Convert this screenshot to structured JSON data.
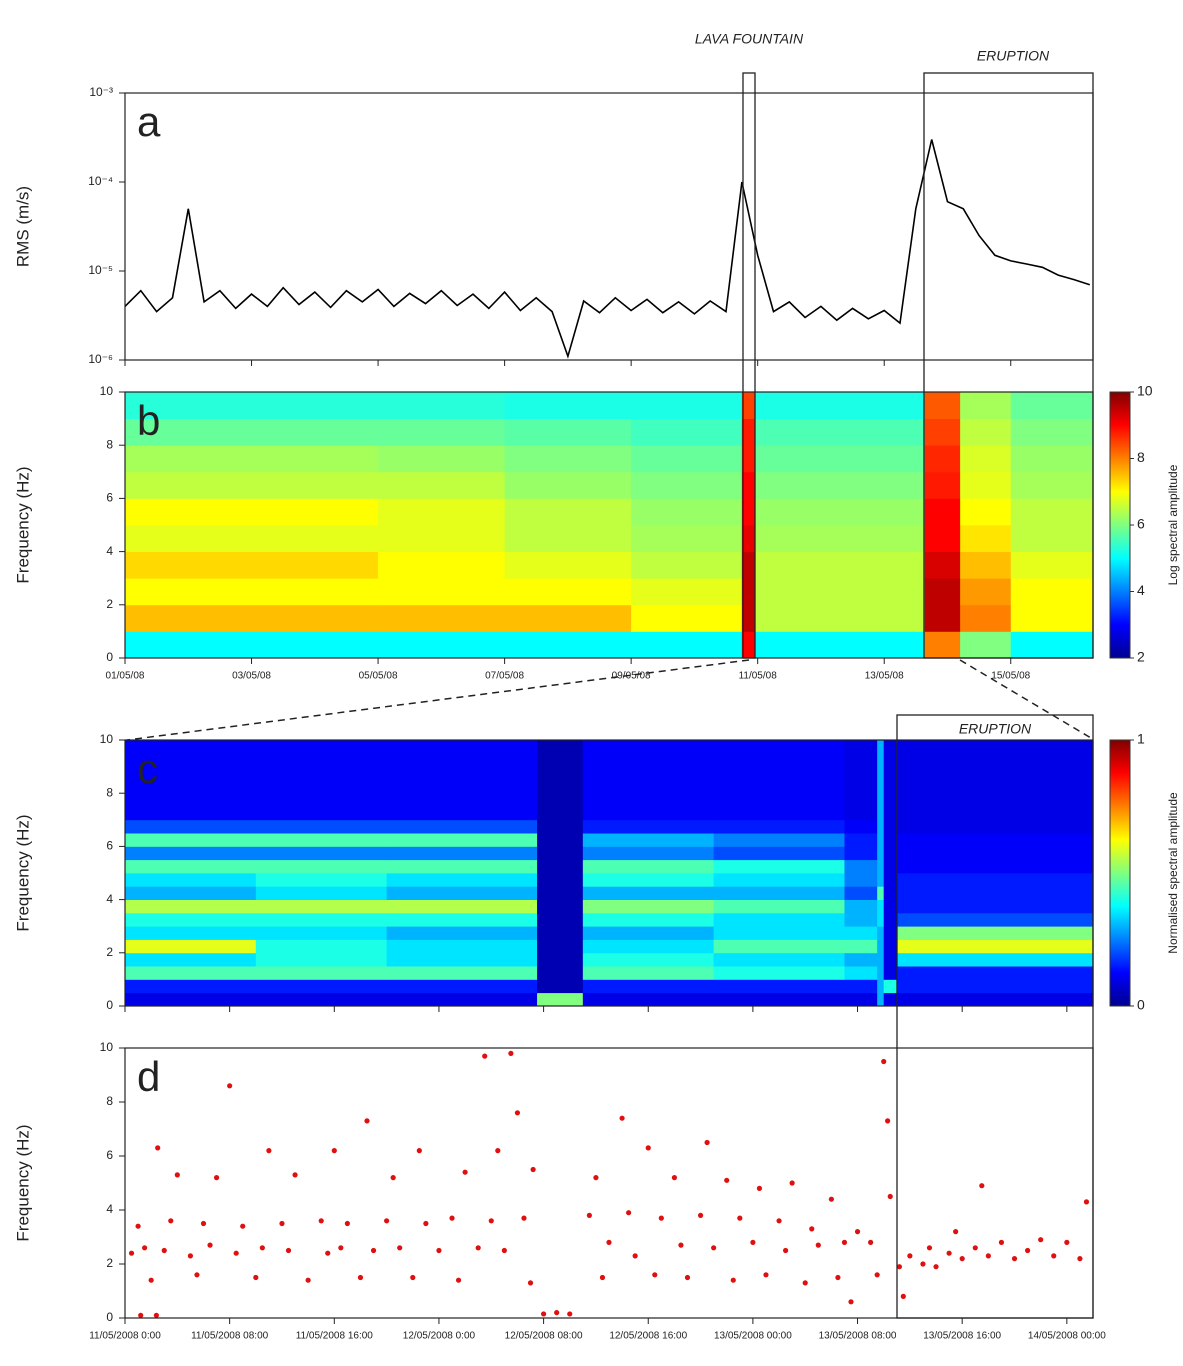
{
  "chart_data": [
    {
      "type": "line",
      "panel": "a",
      "ylabel": "RMS (m/s)",
      "log_y": true,
      "color": "#000000",
      "annotations": [
        "LAVA FOUNTAIN",
        "ERUPTION"
      ],
      "xlim": [
        1,
        16.3
      ],
      "ylim": [
        1e-06,
        0.001
      ],
      "yticks": [
        {
          "value": 1e-06,
          "label": "10⁻⁶"
        },
        {
          "value": 1e-05,
          "label": "10⁻⁵"
        },
        {
          "value": 0.0001,
          "label": "10⁻⁴"
        },
        {
          "value": 0.001,
          "label": "10⁻³"
        }
      ],
      "x": [
        1,
        1.25,
        1.5,
        1.75,
        2,
        2.25,
        2.5,
        2.75,
        3,
        3.25,
        3.5,
        3.75,
        4,
        4.25,
        4.5,
        4.75,
        5,
        5.25,
        5.5,
        5.75,
        6,
        6.25,
        6.5,
        6.75,
        7,
        7.25,
        7.5,
        7.75,
        8,
        8.25,
        8.5,
        8.75,
        9,
        9.25,
        9.5,
        9.75,
        10,
        10.25,
        10.5,
        10.75,
        11,
        11.25,
        11.5,
        11.75,
        12,
        12.25,
        12.5,
        12.75,
        13,
        13.25,
        13.5,
        13.75,
        14,
        14.25,
        14.5,
        14.75,
        15,
        15.25,
        15.5,
        15.75,
        16,
        16.25
      ],
      "values": [
        4e-06,
        6e-06,
        3.5e-06,
        5e-06,
        5e-05,
        4.5e-06,
        6e-06,
        3.8e-06,
        5.5e-06,
        4e-06,
        6.5e-06,
        4.2e-06,
        5.8e-06,
        3.9e-06,
        6e-06,
        4.5e-06,
        6.2e-06,
        4e-06,
        5.6e-06,
        4.3e-06,
        6e-06,
        4.1e-06,
        5.5e-06,
        3.8e-06,
        5.8e-06,
        3.6e-06,
        5e-06,
        3.5e-06,
        1.1e-06,
        4.6e-06,
        3.4e-06,
        5e-06,
        3.6e-06,
        4.8e-06,
        3.4e-06,
        4.5e-06,
        3.3e-06,
        4.6e-06,
        3.5e-06,
        0.0001,
        1.5e-05,
        3.5e-06,
        4.5e-06,
        3e-06,
        4e-06,
        2.8e-06,
        3.8e-06,
        2.9e-06,
        3.6e-06,
        2.6e-06,
        5e-05,
        0.0003,
        6e-05,
        5e-05,
        2.5e-05,
        1.5e-05,
        1.3e-05,
        1.2e-05,
        1.1e-05,
        9e-06,
        8e-06,
        7e-06
      ]
    },
    {
      "type": "heatmap",
      "panel": "b",
      "ylabel": "Frequency (Hz)",
      "colormap": "jet",
      "colorbar": {
        "label": "Log spectral amplitude",
        "lim": [
          2,
          10
        ],
        "ticks": [
          2,
          4,
          6,
          8,
          10
        ]
      },
      "xlim": [
        1,
        16.3
      ],
      "ylim": [
        0,
        10
      ],
      "yticks": [
        0,
        2,
        4,
        6,
        8,
        10
      ],
      "xticks": [
        {
          "value": 1,
          "label": "01/05/08"
        },
        {
          "value": 3,
          "label": "03/05/08"
        },
        {
          "value": 5,
          "label": "05/05/08"
        },
        {
          "value": 7,
          "label": "07/05/08"
        },
        {
          "value": 9,
          "label": "09/05/08"
        },
        {
          "value": 11,
          "label": "11/05/08"
        },
        {
          "value": 13,
          "label": "13/05/08"
        },
        {
          "value": 15,
          "label": "15/05/08"
        }
      ],
      "xbins": [
        1,
        3,
        5,
        7,
        9,
        10.75,
        10.95,
        13.64,
        14.2,
        15,
        16.3
      ],
      "ybins": [
        0,
        1,
        2,
        3,
        4,
        5,
        6,
        7,
        8,
        9,
        10
      ],
      "z": [
        [
          5,
          5,
          5,
          5,
          5,
          9,
          5,
          8,
          6,
          5
        ],
        [
          7.5,
          7.5,
          7.5,
          7.5,
          7,
          9.5,
          6.5,
          9.5,
          8,
          7
        ],
        [
          7,
          7,
          7,
          7,
          6.8,
          9.5,
          6.5,
          9.5,
          7.8,
          7
        ],
        [
          7.3,
          7.3,
          7,
          6.8,
          6.5,
          9.5,
          6.5,
          9.3,
          7.5,
          6.8
        ],
        [
          6.8,
          6.8,
          6.8,
          6.5,
          6.3,
          9.2,
          6.3,
          9,
          7.2,
          6.5
        ],
        [
          7,
          7,
          6.8,
          6.5,
          6.2,
          9,
          6.2,
          9,
          7,
          6.5
        ],
        [
          6.5,
          6.5,
          6.5,
          6.2,
          6,
          9,
          6,
          8.8,
          6.8,
          6.3
        ],
        [
          6.3,
          6.3,
          6.2,
          6,
          5.8,
          8.8,
          5.8,
          8.7,
          6.7,
          6.2
        ],
        [
          5.8,
          5.8,
          5.8,
          5.7,
          5.5,
          8.8,
          5.6,
          8.5,
          6.5,
          6
        ],
        [
          5.3,
          5.3,
          5.3,
          5.2,
          5.2,
          8.5,
          5.2,
          8.3,
          6.3,
          5.8
        ]
      ]
    },
    {
      "type": "heatmap",
      "panel": "c",
      "ylabel": "Frequency (Hz)",
      "colormap": "jet",
      "annotations": [
        "ERUPTION"
      ],
      "colorbar": {
        "label": "Normalised spectral amplitude",
        "lim": [
          0,
          1
        ],
        "ticks": [
          0,
          1
        ]
      },
      "xlim": [
        0,
        74
      ],
      "ylim": [
        0,
        10
      ],
      "yticks": [
        0,
        2,
        4,
        6,
        8,
        10
      ],
      "xbins": [
        0,
        10,
        20,
        31.5,
        35,
        45,
        55,
        57.5,
        58,
        59,
        74
      ],
      "ybins": [
        0,
        0.5,
        1,
        1.5,
        2,
        2.5,
        3,
        3.5,
        4,
        4.5,
        5,
        5.5,
        6,
        6.5,
        7,
        7.5,
        8,
        8.5,
        9,
        9.5,
        10
      ],
      "z": [
        [
          0.1,
          0.1,
          0.1,
          0.5,
          0.1,
          0.1,
          0.1,
          0.3,
          0.1,
          0.1
        ],
        [
          0.15,
          0.15,
          0.15,
          0.05,
          0.15,
          0.15,
          0.15,
          0.3,
          0.4,
          0.15
        ],
        [
          0.45,
          0.45,
          0.45,
          0.05,
          0.45,
          0.4,
          0.35,
          0.3,
          0.1,
          0.15
        ],
        [
          0.35,
          0.4,
          0.35,
          0.05,
          0.4,
          0.35,
          0.3,
          0.3,
          0.1,
          0.35
        ],
        [
          0.6,
          0.4,
          0.35,
          0.05,
          0.35,
          0.45,
          0.45,
          0.3,
          0.1,
          0.6
        ],
        [
          0.35,
          0.35,
          0.3,
          0.05,
          0.3,
          0.35,
          0.35,
          0.3,
          0.1,
          0.5
        ],
        [
          0.4,
          0.4,
          0.4,
          0.05,
          0.4,
          0.35,
          0.3,
          0.35,
          0.1,
          0.2
        ],
        [
          0.55,
          0.55,
          0.55,
          0.05,
          0.5,
          0.45,
          0.3,
          0.35,
          0.1,
          0.15
        ],
        [
          0.3,
          0.35,
          0.3,
          0.05,
          0.3,
          0.3,
          0.2,
          0.45,
          0.1,
          0.15
        ],
        [
          0.35,
          0.4,
          0.35,
          0.05,
          0.4,
          0.35,
          0.25,
          0.3,
          0.1,
          0.15
        ],
        [
          0.45,
          0.45,
          0.45,
          0.05,
          0.45,
          0.4,
          0.25,
          0.3,
          0.1,
          0.12
        ],
        [
          0.25,
          0.25,
          0.25,
          0.05,
          0.25,
          0.2,
          0.15,
          0.3,
          0.1,
          0.12
        ],
        [
          0.45,
          0.45,
          0.45,
          0.05,
          0.3,
          0.25,
          0.15,
          0.3,
          0.1,
          0.12
        ],
        [
          0.2,
          0.2,
          0.2,
          0.05,
          0.15,
          0.15,
          0.12,
          0.3,
          0.1,
          0.1
        ],
        [
          0.12,
          0.12,
          0.12,
          0.05,
          0.12,
          0.12,
          0.1,
          0.3,
          0.1,
          0.1
        ],
        [
          0.12,
          0.12,
          0.12,
          0.05,
          0.12,
          0.12,
          0.1,
          0.3,
          0.1,
          0.1
        ],
        [
          0.12,
          0.12,
          0.12,
          0.05,
          0.12,
          0.12,
          0.1,
          0.3,
          0.1,
          0.1
        ],
        [
          0.12,
          0.12,
          0.12,
          0.05,
          0.12,
          0.12,
          0.1,
          0.3,
          0.1,
          0.1
        ],
        [
          0.12,
          0.12,
          0.12,
          0.05,
          0.12,
          0.12,
          0.1,
          0.3,
          0.1,
          0.1
        ],
        [
          0.12,
          0.12,
          0.12,
          0.05,
          0.12,
          0.12,
          0.1,
          0.3,
          0.1,
          0.1
        ]
      ]
    },
    {
      "type": "scatter",
      "panel": "d",
      "ylabel": "Frequency (Hz)",
      "color": "#e01010",
      "xlim": [
        0,
        74
      ],
      "ylim": [
        0,
        10
      ],
      "yticks": [
        0,
        2,
        4,
        6,
        8,
        10
      ],
      "xticks": [
        {
          "value": 0,
          "label": "11/05/2008 0:00"
        },
        {
          "value": 8,
          "label": "11/05/2008 08:00"
        },
        {
          "value": 16,
          "label": "11/05/2008 16:00"
        },
        {
          "value": 24,
          "label": "12/05/2008 0:00"
        },
        {
          "value": 32,
          "label": "12/05/2008 08:00"
        },
        {
          "value": 40,
          "label": "12/05/2008 16:00"
        },
        {
          "value": 48,
          "label": "13/05/2008 00:00"
        },
        {
          "value": 56,
          "label": "13/05/2008 08:00"
        },
        {
          "value": 64,
          "label": "13/05/2008 16:00"
        },
        {
          "value": 72,
          "label": "14/05/2008 00:00"
        }
      ],
      "x": [
        0.5,
        1,
        1.2,
        1.5,
        2,
        2.4,
        2.5,
        3,
        3.5,
        4,
        5,
        5.5,
        6,
        6.5,
        7,
        8,
        8.5,
        9,
        10,
        10.5,
        11,
        12,
        12.5,
        13,
        14,
        15,
        15.5,
        16,
        16.5,
        17,
        18,
        18.5,
        19,
        20,
        20.5,
        21,
        22,
        22.5,
        23,
        24,
        25,
        25.5,
        26,
        27,
        27.5,
        28,
        28.5,
        29,
        29.5,
        30,
        30.5,
        31,
        31.2,
        32,
        33,
        34,
        35.5,
        36,
        36.5,
        37,
        38,
        38.5,
        39,
        40,
        40.5,
        41,
        42,
        42.5,
        43,
        44,
        44.5,
        45,
        46,
        46.5,
        47,
        48,
        48.5,
        49,
        50,
        50.5,
        51,
        52,
        52.5,
        53,
        54,
        54.5,
        55,
        55.5,
        56,
        57,
        57.5,
        58,
        58.3,
        58.5,
        59.2,
        59.5,
        60,
        61,
        61.5,
        62,
        63,
        63.5,
        64,
        65,
        65.5,
        66,
        67,
        68,
        69,
        70,
        71,
        72,
        73,
        73.5
      ],
      "y": [
        2.4,
        3.4,
        0.1,
        2.6,
        1.4,
        0.1,
        6.3,
        2.5,
        3.6,
        5.3,
        2.3,
        1.6,
        3.5,
        2.7,
        5.2,
        8.6,
        2.4,
        3.4,
        1.5,
        2.6,
        6.2,
        3.5,
        2.5,
        5.3,
        1.4,
        3.6,
        2.4,
        6.2,
        2.6,
        3.5,
        1.5,
        7.3,
        2.5,
        3.6,
        5.2,
        2.6,
        1.5,
        6.2,
        3.5,
        2.5,
        3.7,
        1.4,
        5.4,
        2.6,
        9.7,
        3.6,
        6.2,
        2.5,
        9.8,
        7.6,
        3.7,
        1.3,
        5.5,
        0.15,
        0.2,
        0.15,
        3.8,
        5.2,
        1.5,
        2.8,
        7.4,
        3.9,
        2.3,
        6.3,
        1.6,
        3.7,
        5.2,
        2.7,
        1.5,
        3.8,
        6.5,
        2.6,
        5.1,
        1.4,
        3.7,
        2.8,
        4.8,
        1.6,
        3.6,
        2.5,
        5.0,
        1.3,
        3.3,
        2.7,
        4.4,
        1.5,
        2.8,
        0.6,
        3.2,
        2.8,
        1.6,
        9.5,
        7.3,
        4.5,
        1.9,
        0.8,
        2.3,
        2.0,
        2.6,
        1.9,
        2.4,
        3.2,
        2.2,
        2.6,
        4.9,
        2.3,
        2.8,
        2.2,
        2.5,
        2.9,
        2.3,
        2.8,
        2.2,
        4.3
      ]
    }
  ]
}
